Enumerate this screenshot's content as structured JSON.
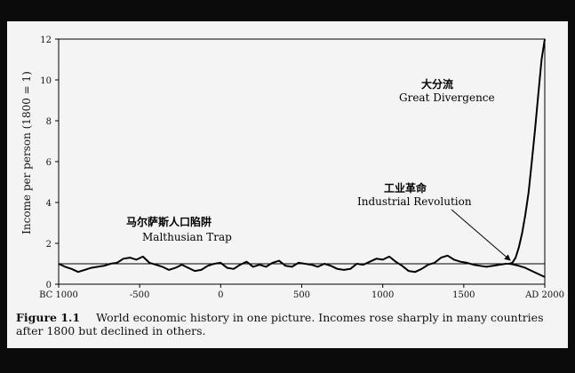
{
  "chart_data": {
    "type": "line",
    "title": "",
    "xlabel": "",
    "ylabel": "Income per person (1800 = 1)",
    "xlim": [
      -1000,
      2000
    ],
    "ylim": [
      0,
      12
    ],
    "x_ticks": [
      {
        "value": -1000,
        "label": "BC 1000"
      },
      {
        "value": -500,
        "label": "-500"
      },
      {
        "value": 0,
        "label": "0"
      },
      {
        "value": 500,
        "label": "500"
      },
      {
        "value": 1000,
        "label": "1000"
      },
      {
        "value": 1500,
        "label": "1500"
      },
      {
        "value": 2000,
        "label": "AD 2000"
      }
    ],
    "y_ticks": [
      0,
      2,
      4,
      6,
      8,
      10,
      12
    ],
    "reference_line": 1,
    "series": [
      {
        "x": [
          -1000,
          -960,
          -920,
          -880,
          -840,
          -800,
          -760,
          -720,
          -680,
          -640,
          -600,
          -560,
          -520,
          -480,
          -440,
          -400,
          -360,
          -320,
          -280,
          -240,
          -200,
          -160,
          -120,
          -80,
          -40,
          0,
          40,
          80,
          120,
          160,
          200,
          240,
          280,
          320,
          360,
          400,
          440,
          480,
          520,
          560,
          600,
          640,
          680,
          720,
          760,
          800,
          840,
          880,
          920,
          960,
          1000,
          1040,
          1080,
          1120,
          1160,
          1200,
          1240,
          1280,
          1320,
          1360,
          1400,
          1440,
          1480,
          1520,
          1560,
          1600,
          1640,
          1680,
          1720,
          1760,
          1780,
          1800,
          1820,
          1840,
          1860,
          1880,
          1900,
          1920,
          1940,
          1960,
          1980,
          2000
        ],
        "y": [
          1.0,
          0.85,
          0.75,
          0.6,
          0.7,
          0.8,
          0.85,
          0.9,
          1.0,
          1.05,
          1.25,
          1.3,
          1.2,
          1.35,
          1.05,
          0.95,
          0.85,
          0.7,
          0.8,
          0.95,
          0.8,
          0.65,
          0.7,
          0.9,
          1.0,
          1.05,
          0.8,
          0.75,
          0.95,
          1.1,
          0.85,
          0.95,
          0.85,
          1.05,
          1.15,
          0.9,
          0.85,
          1.05,
          1.0,
          0.95,
          0.85,
          1.0,
          0.9,
          0.75,
          0.7,
          0.75,
          1.0,
          0.95,
          1.1,
          1.25,
          1.2,
          1.35,
          1.1,
          0.9,
          0.65,
          0.6,
          0.75,
          0.95,
          1.05,
          1.3,
          1.4,
          1.2,
          1.1,
          1.05,
          0.95,
          0.9,
          0.85,
          0.9,
          0.95,
          1.0,
          1.0,
          1.05,
          1.3,
          1.8,
          2.5,
          3.4,
          4.5,
          6.0,
          7.6,
          9.3,
          11.0,
          12.0
        ]
      },
      {
        "x": [
          1780,
          1800,
          1840,
          1880,
          1920,
          1960,
          2000
        ],
        "y": [
          1.0,
          0.98,
          0.9,
          0.8,
          0.65,
          0.5,
          0.35
        ]
      }
    ],
    "annotations": [
      {
        "cn": "马尔萨斯人口陷阱",
        "en": "Malthusian Trap"
      },
      {
        "cn": "工业革命",
        "en": "Industrial Revolution"
      },
      {
        "cn": "大分流",
        "en": "Great Divergence"
      }
    ],
    "caption": {
      "figure": "Figure 1.1",
      "text": "World economic history in one picture. Incomes rose sharply in many countries after 1800 but declined in others."
    },
    "colors": {
      "line": "#000000",
      "background": "#f4f4f4",
      "outer": "#0b0b0b"
    }
  }
}
